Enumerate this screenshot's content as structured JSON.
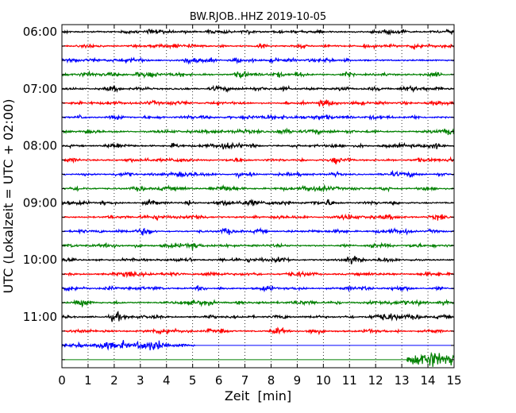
{
  "chart_data": {
    "type": "line",
    "title": "BW.RJOB..HHZ 2019-10-05",
    "xlabel": "Zeit  [min]",
    "ylabel": "UTC (Lokalzeit = UTC + 02:00)",
    "xlim": [
      0,
      15
    ],
    "x_ticks": [
      "0",
      "1",
      "2",
      "3",
      "4",
      "5",
      "6",
      "7",
      "8",
      "9",
      "10",
      "11",
      "12",
      "13",
      "14",
      "15"
    ],
    "y_tick_labels": [
      "06:00",
      "07:00",
      "08:00",
      "09:00",
      "10:00",
      "11:00"
    ],
    "grid": "vertical-dotted",
    "trace_interval_min": 15,
    "colors_cycle": [
      "#000000",
      "#ff0000",
      "#0000ff",
      "#008000"
    ],
    "traces": [
      {
        "start": "06:00",
        "color": "#000000",
        "end_min": 15
      },
      {
        "start": "06:15",
        "color": "#ff0000",
        "end_min": 15
      },
      {
        "start": "06:30",
        "color": "#0000ff",
        "end_min": 15
      },
      {
        "start": "06:45",
        "color": "#008000",
        "end_min": 15
      },
      {
        "start": "07:00",
        "color": "#000000",
        "end_min": 15
      },
      {
        "start": "07:15",
        "color": "#ff0000",
        "end_min": 15
      },
      {
        "start": "07:30",
        "color": "#0000ff",
        "end_min": 15
      },
      {
        "start": "07:45",
        "color": "#008000",
        "end_min": 15
      },
      {
        "start": "08:00",
        "color": "#000000",
        "end_min": 15
      },
      {
        "start": "08:15",
        "color": "#ff0000",
        "end_min": 15
      },
      {
        "start": "08:30",
        "color": "#0000ff",
        "end_min": 15
      },
      {
        "start": "08:45",
        "color": "#008000",
        "end_min": 15
      },
      {
        "start": "09:00",
        "color": "#000000",
        "end_min": 15
      },
      {
        "start": "09:15",
        "color": "#ff0000",
        "end_min": 15
      },
      {
        "start": "09:30",
        "color": "#0000ff",
        "end_min": 15
      },
      {
        "start": "09:45",
        "color": "#008000",
        "end_min": 15
      },
      {
        "start": "10:00",
        "color": "#000000",
        "end_min": 15
      },
      {
        "start": "10:15",
        "color": "#ff0000",
        "end_min": 15
      },
      {
        "start": "10:30",
        "color": "#0000ff",
        "end_min": 15
      },
      {
        "start": "10:45",
        "color": "#008000",
        "end_min": 15
      },
      {
        "start": "11:00",
        "color": "#000000",
        "end_min": 15
      },
      {
        "start": "11:15",
        "color": "#ff0000",
        "end_min": 15
      },
      {
        "start": "11:30",
        "color": "#0000ff",
        "end_min": 5.1
      },
      {
        "start": "11:45",
        "color": "#008000",
        "start_min": 13.2,
        "end_min": 15
      }
    ]
  }
}
